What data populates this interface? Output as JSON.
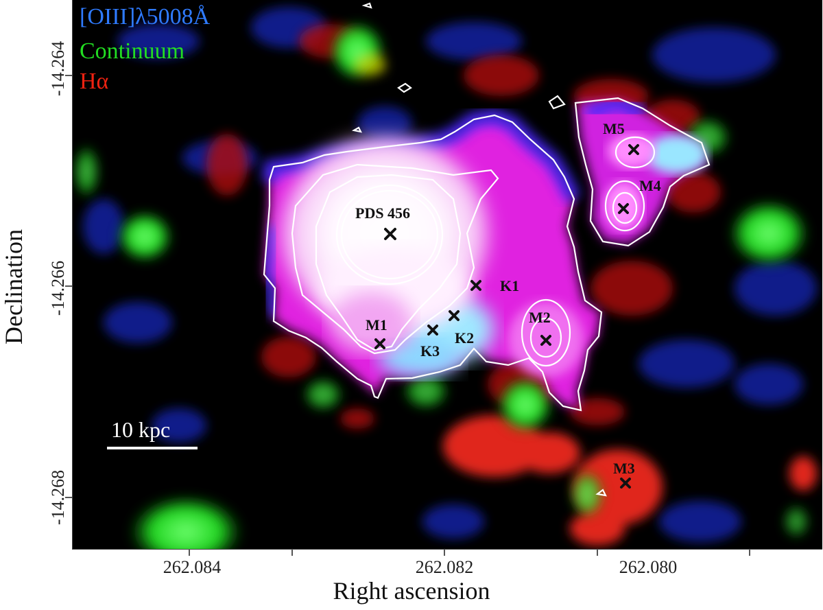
{
  "legend": [
    {
      "text": "[OIII]λ5008Å",
      "color": "#2f7bff"
    },
    {
      "text": "Continuum",
      "color": "#22dd22"
    },
    {
      "text": "Hα",
      "color": "#ee2211"
    }
  ],
  "axes": {
    "xlabel": "Right ascension",
    "ylabel": "Declination",
    "xticks": [
      "262.084",
      "262.082",
      "262.080"
    ],
    "yticks": [
      "-14.264",
      "-14.266",
      "-14.268"
    ]
  },
  "labels": {
    "pds": "PDS 456",
    "k1": "K1",
    "k2": "K2",
    "k3": "K3",
    "m1": "M1",
    "m2": "M2",
    "m3": "M3",
    "m4": "M4",
    "m5": "M5"
  },
  "scalebar": "10 kpc",
  "colors": {
    "oiii": "#2f7bff",
    "continuum": "#22dd22",
    "halpha": "#ee2211",
    "contour": "#ffffff"
  }
}
